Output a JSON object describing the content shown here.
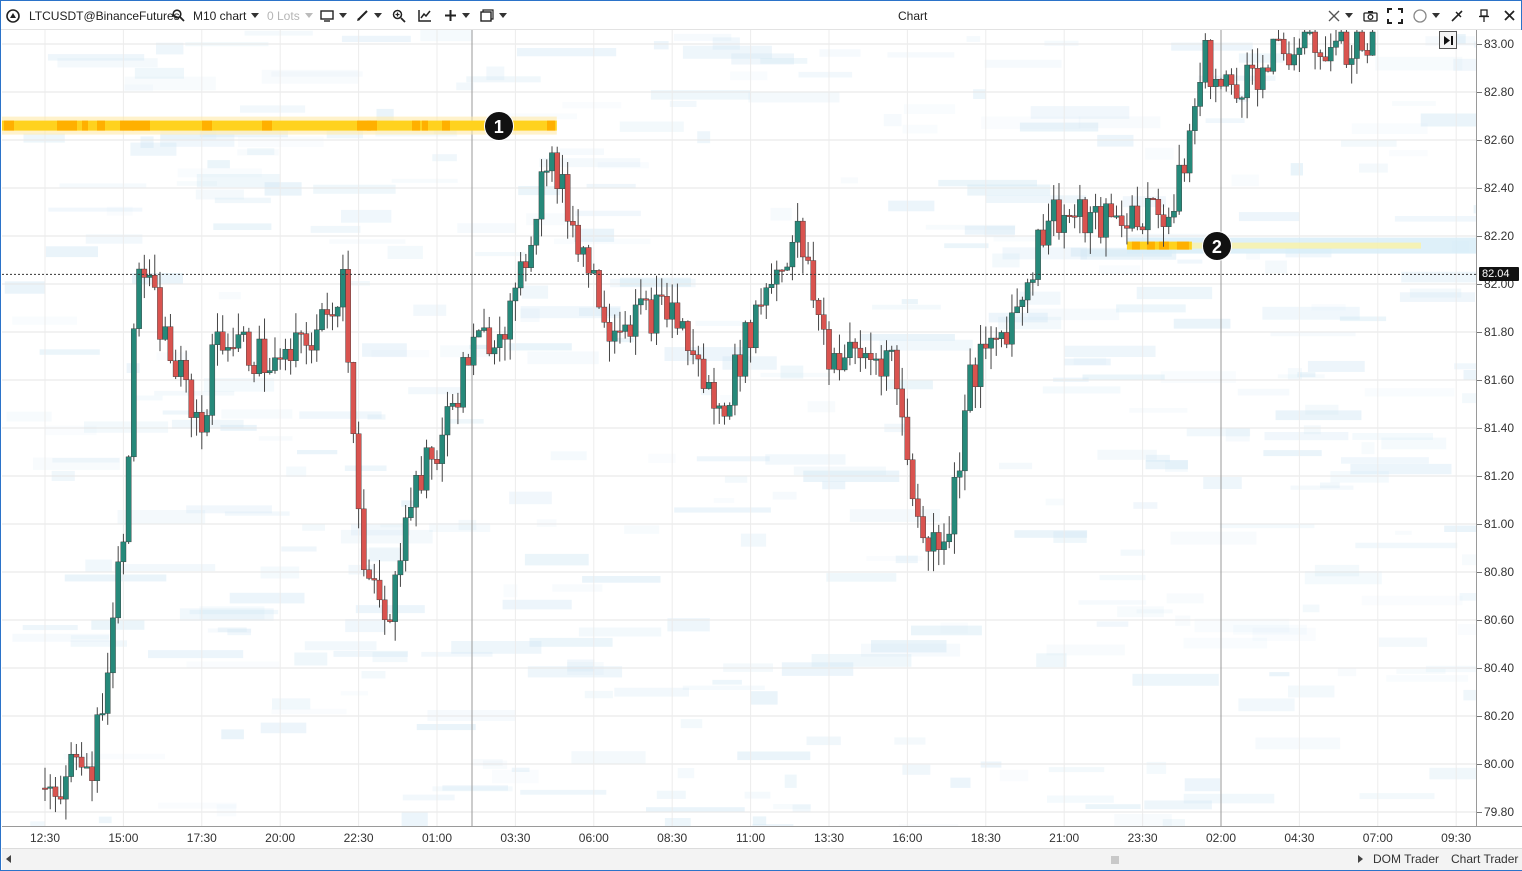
{
  "toolbar": {
    "symbol": "LTCUSDT@BinanceFutures",
    "timeframe": "M10 chart",
    "lots": "0 Lots",
    "window_title": "Chart"
  },
  "price_axis": {
    "labels": [
      "83.00",
      "82.80",
      "82.60",
      "82.40",
      "82.20",
      "82.00",
      "81.80",
      "81.60",
      "81.40",
      "81.20",
      "81.00",
      "80.80",
      "80.60",
      "80.40",
      "80.20",
      "80.00",
      "79.80"
    ],
    "current_price": "82.04"
  },
  "time_axis": {
    "labels": [
      "12:30",
      "15:00",
      "17:30",
      "20:00",
      "22:30",
      "01:00",
      "03:30",
      "06:00",
      "08:30",
      "11:00",
      "13:30",
      "16:00",
      "18:30",
      "21:00",
      "23:30",
      "02:00",
      "04:30",
      "07:00",
      "09:30"
    ]
  },
  "markers": [
    {
      "label": "1",
      "price": 82.66,
      "note_time": "04:30"
    },
    {
      "label": "2",
      "price": 82.16,
      "note_time": "02:00"
    }
  ],
  "bottom_bar": {
    "dom_trader": "DOM Trader",
    "chart_trader": "Chart Trader"
  },
  "colors": {
    "up_candle": "#26897a",
    "down_candle": "#d9534f",
    "heatmap_low": "#cfe6f4",
    "heatmap_high": "#ffb000",
    "price_line": "#333333"
  },
  "chart_data": {
    "type": "candlestick-heatmap",
    "symbol": "LTCUSDT",
    "interval": "10m",
    "ylim": [
      79.76,
      83.06
    ],
    "current_price": 82.04,
    "close_path": [
      {
        "t": "12:30",
        "close": 79.9
      },
      {
        "t": "14:00",
        "close": 80.0
      },
      {
        "t": "14:40",
        "close": 80.6
      },
      {
        "t": "15:00",
        "close": 81.0
      },
      {
        "t": "15:30",
        "close": 82.1
      },
      {
        "t": "16:30",
        "close": 81.7
      },
      {
        "t": "17:30",
        "close": 81.4
      },
      {
        "t": "18:00",
        "close": 81.8
      },
      {
        "t": "20:00",
        "close": 81.65
      },
      {
        "t": "21:30",
        "close": 81.85
      },
      {
        "t": "22:00",
        "close": 82.05
      },
      {
        "t": "22:40",
        "close": 80.8
      },
      {
        "t": "23:30",
        "close": 80.55
      },
      {
        "t": "00:00",
        "close": 81.1
      },
      {
        "t": "01:00",
        "close": 81.3
      },
      {
        "t": "02:00",
        "close": 81.7
      },
      {
        "t": "03:30",
        "close": 81.9
      },
      {
        "t": "04:30",
        "close": 82.55
      },
      {
        "t": "05:30",
        "close": 82.2
      },
      {
        "t": "06:30",
        "close": 81.85
      },
      {
        "t": "08:30",
        "close": 81.9
      },
      {
        "t": "10:00",
        "close": 81.45
      },
      {
        "t": "11:30",
        "close": 82.0
      },
      {
        "t": "12:30",
        "close": 82.2
      },
      {
        "t": "13:30",
        "close": 81.7
      },
      {
        "t": "15:30",
        "close": 81.7
      },
      {
        "t": "16:30",
        "close": 80.9
      },
      {
        "t": "17:20",
        "close": 81.0
      },
      {
        "t": "18:00",
        "close": 81.6
      },
      {
        "t": "19:30",
        "close": 81.9
      },
      {
        "t": "20:30",
        "close": 82.3
      },
      {
        "t": "22:00",
        "close": 82.25
      },
      {
        "t": "23:30",
        "close": 82.3
      },
      {
        "t": "00:30",
        "close": 82.3
      },
      {
        "t": "01:30",
        "close": 82.95
      },
      {
        "t": "02:00",
        "close": 82.8
      },
      {
        "t": "04:30",
        "close": 83.0
      },
      {
        "t": "07:00",
        "close": 83.0
      }
    ],
    "heatmap_levels": [
      {
        "price": 82.66,
        "intensity": "high",
        "range": [
          "12:00",
          "04:30"
        ]
      },
      {
        "price": 82.16,
        "intensity": "medium",
        "range": [
          "23:00",
          "09:30"
        ]
      }
    ]
  }
}
